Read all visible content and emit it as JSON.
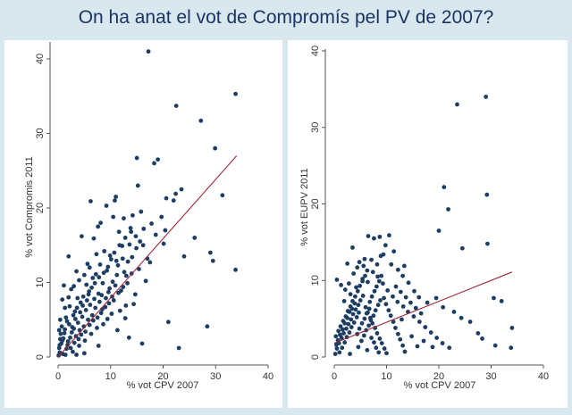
{
  "title": "On ha anat el vot de Compromís pel PV de 2007?",
  "chart_data": [
    {
      "type": "scatter",
      "xlabel": "% vot CPV 2007",
      "ylabel": "% vot Compromis 2011",
      "xlim": [
        0,
        40
      ],
      "ylim": [
        0,
        40
      ],
      "xticks": [
        0,
        10,
        20,
        30,
        40
      ],
      "yticks": [
        0,
        10,
        20,
        30,
        40
      ],
      "fit_line": {
        "x": [
          0,
          34
        ],
        "y": [
          0,
          27
        ]
      },
      "points": [
        [
          17.2,
          41
        ],
        [
          22.5,
          33.7
        ],
        [
          27.2,
          31.7
        ],
        [
          33.8,
          35.3
        ],
        [
          29.9,
          28
        ],
        [
          15,
          26.7
        ],
        [
          19,
          26.5
        ],
        [
          18.3,
          26
        ],
        [
          23.5,
          22.5
        ],
        [
          22.4,
          21.9
        ],
        [
          31.3,
          21.7
        ],
        [
          20.6,
          21.3
        ],
        [
          22,
          21
        ],
        [
          11,
          21.5
        ],
        [
          10.8,
          21
        ],
        [
          15.2,
          23
        ],
        [
          26,
          16
        ],
        [
          24,
          13.5
        ],
        [
          29,
          14
        ],
        [
          29.5,
          12.9
        ],
        [
          33.8,
          11.7
        ],
        [
          17,
          13.2
        ],
        [
          17.5,
          12.7
        ],
        [
          20.1,
          15.2
        ],
        [
          16.2,
          15
        ],
        [
          21,
          4.7
        ],
        [
          28.4,
          4.1
        ],
        [
          23,
          1.2
        ],
        [
          13.5,
          2.6
        ],
        [
          12.8,
          5.2
        ],
        [
          14.7,
          8.4
        ],
        [
          6.2,
          20.9
        ],
        [
          4.5,
          16.2
        ],
        [
          2,
          13.5
        ],
        [
          9.2,
          20.3
        ],
        [
          7.6,
          17.5
        ],
        [
          12.5,
          18.6
        ],
        [
          14.2,
          19
        ],
        [
          11.6,
          16.8
        ],
        [
          8.1,
          18
        ],
        [
          13.8,
          17.3
        ],
        [
          12.2,
          14.9
        ],
        [
          15.8,
          19.5
        ],
        [
          10.5,
          18.8
        ],
        [
          6.8,
          15.9
        ],
        [
          3.5,
          11.5
        ],
        [
          1.1,
          9.6
        ],
        [
          0.8,
          7.7
        ],
        [
          2.5,
          9.1
        ],
        [
          5.6,
          12.5
        ],
        [
          8.8,
          14.2
        ],
        [
          9.9,
          13.6
        ],
        [
          11.4,
          12.3
        ],
        [
          13,
          10.9
        ],
        [
          15.4,
          11.8
        ],
        [
          16.7,
          10.2
        ],
        [
          12,
          8.9
        ],
        [
          10.6,
          7.6
        ],
        [
          8.5,
          9.9
        ],
        [
          7.2,
          11.1
        ],
        [
          5.9,
          8.8
        ],
        [
          4.3,
          7.3
        ],
        [
          3.2,
          6.1
        ],
        [
          2.1,
          4.4
        ],
        [
          1.2,
          3.2
        ],
        [
          0.6,
          1.8
        ],
        [
          0.3,
          0.6
        ],
        [
          0.2,
          1.2
        ],
        [
          0.4,
          2.4
        ],
        [
          0.9,
          0.4
        ],
        [
          1.6,
          1.1
        ],
        [
          2.3,
          2.6
        ],
        [
          3,
          3.8
        ],
        [
          3.8,
          4.6
        ],
        [
          4.6,
          5.4
        ],
        [
          5.3,
          6.3
        ],
        [
          6.1,
          7
        ],
        [
          6.9,
          7.8
        ],
        [
          7.7,
          8.5
        ],
        [
          8.4,
          6.4
        ],
        [
          9.1,
          7.9
        ],
        [
          9.8,
          9.2
        ],
        [
          10.4,
          10.1
        ],
        [
          11.2,
          11
        ],
        [
          12.6,
          11.4
        ],
        [
          13.3,
          12.8
        ],
        [
          14.1,
          13.4
        ],
        [
          14.9,
          14.6
        ],
        [
          15.6,
          15.5
        ],
        [
          16.3,
          17.2
        ],
        [
          17.8,
          17.9
        ],
        [
          18.6,
          16.4
        ],
        [
          19.7,
          18.8
        ],
        [
          20.4,
          17
        ],
        [
          1.4,
          0.3
        ],
        [
          2.8,
          0.7
        ],
        [
          4,
          1.5
        ],
        [
          5.1,
          2.2
        ],
        [
          6.3,
          3.1
        ],
        [
          7.4,
          3.9
        ],
        [
          8.6,
          4.4
        ],
        [
          9.4,
          5.1
        ],
        [
          10.2,
          5.8
        ],
        [
          11.8,
          6.2
        ],
        [
          12.9,
          6.9
        ],
        [
          14.4,
          7.1
        ],
        [
          1.9,
          2.1
        ],
        [
          2.6,
          3.3
        ],
        [
          3.4,
          2.8
        ],
        [
          4.1,
          3.6
        ],
        [
          4.9,
          4.1
        ],
        [
          5.7,
          5
        ],
        [
          6.5,
          5.6
        ],
        [
          7.1,
          6.6
        ],
        [
          7.9,
          7.4
        ],
        [
          8.3,
          8.3
        ],
        [
          9.6,
          8.7
        ],
        [
          10.9,
          9.6
        ],
        [
          11.1,
          12.9
        ],
        [
          12.3,
          13.2
        ],
        [
          13.6,
          15.1
        ],
        [
          14.8,
          16.2
        ],
        [
          9.3,
          11.6
        ],
        [
          8,
          12.4
        ],
        [
          6.6,
          10.6
        ],
        [
          5.4,
          9.7
        ],
        [
          4.8,
          8.1
        ],
        [
          3.7,
          7.9
        ],
        [
          2.9,
          5.6
        ],
        [
          2.2,
          6.8
        ],
        [
          1.5,
          5.3
        ],
        [
          0.7,
          4.1
        ],
        [
          0.5,
          3.1
        ],
        [
          1,
          2.5
        ],
        [
          1.8,
          1.6
        ],
        [
          2.4,
          1.2
        ],
        [
          3.1,
          1.9
        ],
        [
          3.9,
          2.4
        ],
        [
          4.4,
          3
        ],
        [
          5.2,
          3.4
        ],
        [
          6,
          4.3
        ],
        [
          6.7,
          4.9
        ],
        [
          7.5,
          5.3
        ],
        [
          8.2,
          5.9
        ],
        [
          9,
          6.7
        ],
        [
          9.7,
          7.2
        ],
        [
          10.3,
          8.1
        ],
        [
          11.5,
          8.6
        ],
        [
          12.4,
          9.4
        ],
        [
          13.2,
          9.9
        ],
        [
          14,
          11.2
        ],
        [
          0.1,
          0.2
        ],
        [
          0.3,
          1.6
        ],
        [
          0.8,
          2.2
        ],
        [
          1.3,
          3.7
        ],
        [
          1.7,
          4.8
        ],
        [
          2.7,
          4
        ],
        [
          3.3,
          5.1
        ],
        [
          3.6,
          6.6
        ],
        [
          4.2,
          6
        ],
        [
          4.7,
          6.9
        ],
        [
          5.5,
          7.6
        ],
        [
          5.8,
          8.4
        ],
        [
          6.4,
          9.3
        ],
        [
          7,
          9.9
        ],
        [
          7.8,
          10.7
        ],
        [
          8.7,
          11.3
        ],
        [
          9.5,
          12.1
        ],
        [
          10.1,
          13.1
        ],
        [
          10.7,
          14
        ],
        [
          11.7,
          15
        ],
        [
          12.8,
          16
        ],
        [
          13.9,
          16.8
        ],
        [
          7.3,
          13.8
        ],
        [
          6,
          12
        ],
        [
          5,
          11
        ],
        [
          4,
          10.3
        ],
        [
          3,
          9.5
        ],
        [
          2,
          8
        ],
        [
          1.3,
          6.6
        ],
        [
          0.4,
          5
        ],
        [
          0.2,
          3.6
        ],
        [
          16,
          1.8
        ],
        [
          11.3,
          3.6
        ],
        [
          7.7,
          1.5
        ],
        [
          5,
          0.5
        ],
        [
          3.5,
          0.3
        ]
      ]
    },
    {
      "type": "scatter",
      "xlabel": "% vot CPV 2007",
      "ylabel": "% vot EUPV 2011",
      "xlim": [
        0,
        40
      ],
      "ylim": [
        0,
        40
      ],
      "xticks": [
        0,
        10,
        20,
        30,
        40
      ],
      "yticks": [
        0,
        10,
        20,
        30,
        40
      ],
      "fit_line": {
        "x": [
          0,
          34
        ],
        "y": [
          1.8,
          11.1
        ]
      },
      "points": [
        [
          29,
          34
        ],
        [
          23.5,
          33
        ],
        [
          21,
          22.2
        ],
        [
          21.8,
          19.3
        ],
        [
          29.2,
          21.2
        ],
        [
          20,
          16.5
        ],
        [
          24.5,
          14.2
        ],
        [
          29.3,
          14.8
        ],
        [
          30.5,
          7.7
        ],
        [
          32,
          7.3
        ],
        [
          34,
          3.8
        ],
        [
          33.8,
          1.2
        ],
        [
          30.8,
          1.5
        ],
        [
          28.3,
          2.4
        ],
        [
          27.5,
          3.1
        ],
        [
          26,
          4.6
        ],
        [
          24.3,
          5.1
        ],
        [
          22.9,
          5.9
        ],
        [
          20.8,
          6.5
        ],
        [
          19.5,
          7.7
        ],
        [
          17.8,
          7.1
        ],
        [
          16.2,
          7.8
        ],
        [
          15.3,
          8.6
        ],
        [
          14.2,
          9.7
        ],
        [
          13.1,
          10.6
        ],
        [
          12.2,
          11.4
        ],
        [
          10.9,
          12.1
        ],
        [
          9.8,
          14.6
        ],
        [
          8.7,
          15.7
        ],
        [
          7.6,
          15.5
        ],
        [
          10.5,
          15.9
        ],
        [
          5.8,
          12.8
        ],
        [
          4.8,
          12.4
        ],
        [
          3.5,
          14.3
        ],
        [
          2.5,
          12.2
        ],
        [
          6.5,
          15.8
        ],
        [
          8.9,
          13.2
        ],
        [
          11.4,
          13.8
        ],
        [
          13.4,
          11.9
        ],
        [
          0.5,
          10.1
        ],
        [
          1.3,
          9.4
        ],
        [
          2.1,
          8.8
        ],
        [
          3.1,
          8.2
        ],
        [
          4.2,
          9.1
        ],
        [
          5.4,
          10.2
        ],
        [
          6.4,
          9.8
        ],
        [
          7.4,
          11.1
        ],
        [
          8.3,
          10.5
        ],
        [
          9.3,
          9.6
        ],
        [
          10.2,
          8.7
        ],
        [
          11.2,
          7.9
        ],
        [
          12.1,
          7.2
        ],
        [
          13.2,
          6.6
        ],
        [
          14.1,
          5.9
        ],
        [
          15.2,
          5.3
        ],
        [
          16.3,
          4.6
        ],
        [
          17.4,
          3.9
        ],
        [
          18.5,
          3.2
        ],
        [
          19.6,
          2.5
        ],
        [
          20.7,
          1.8
        ],
        [
          22,
          1.2
        ],
        [
          0.2,
          0.4
        ],
        [
          0.5,
          1.1
        ],
        [
          0.9,
          1.8
        ],
        [
          1.4,
          2.5
        ],
        [
          1.8,
          3.1
        ],
        [
          2.3,
          3.7
        ],
        [
          2.7,
          4.3
        ],
        [
          3.2,
          4.9
        ],
        [
          3.6,
          5.6
        ],
        [
          4.1,
          6.2
        ],
        [
          4.6,
          6.8
        ],
        [
          5,
          7.4
        ],
        [
          5.5,
          8
        ],
        [
          6,
          6.5
        ],
        [
          6.4,
          5.8
        ],
        [
          6.9,
          5.1
        ],
        [
          7.3,
          4.4
        ],
        [
          7.8,
          3.8
        ],
        [
          8.2,
          3.1
        ],
        [
          8.7,
          2.4
        ],
        [
          9.1,
          1.8
        ],
        [
          9.6,
          1.1
        ],
        [
          10,
          0.5
        ],
        [
          0.3,
          2.7
        ],
        [
          0.8,
          3.4
        ],
        [
          1.2,
          4
        ],
        [
          1.7,
          4.7
        ],
        [
          2.2,
          5.3
        ],
        [
          2.6,
          6
        ],
        [
          3.1,
          6.6
        ],
        [
          3.5,
          7.3
        ],
        [
          4,
          7.9
        ],
        [
          4.5,
          8.6
        ],
        [
          4.9,
          9.3
        ],
        [
          5.4,
          9.9
        ],
        [
          5.9,
          10.6
        ],
        [
          6.3,
          11.3
        ],
        [
          6.8,
          7.2
        ],
        [
          7.2,
          7.9
        ],
        [
          7.7,
          8.6
        ],
        [
          8.1,
          9.2
        ],
        [
          8.6,
          9.9
        ],
        [
          9,
          10.6
        ],
        [
          9.5,
          7.7
        ],
        [
          9.9,
          6.9
        ],
        [
          10.4,
          6.1
        ],
        [
          10.8,
          5.4
        ],
        [
          11.3,
          4.6
        ],
        [
          11.7,
          3.8
        ],
        [
          12.2,
          3
        ],
        [
          12.6,
          2.3
        ],
        [
          13.1,
          1.5
        ],
        [
          13.5,
          0.7
        ],
        [
          1,
          0.6
        ],
        [
          1.5,
          1.2
        ],
        [
          2,
          1.9
        ],
        [
          2.4,
          2.6
        ],
        [
          2.9,
          3.2
        ],
        [
          3.3,
          3.9
        ],
        [
          3.8,
          4.5
        ],
        [
          4.3,
          5.2
        ],
        [
          4.7,
          5.8
        ],
        [
          5.2,
          2.1
        ],
        [
          5.7,
          2.8
        ],
        [
          6.1,
          3.5
        ],
        [
          6.6,
          4.1
        ],
        [
          7,
          4.8
        ],
        [
          7.5,
          5.4
        ],
        [
          7.9,
          6.1
        ],
        [
          8.4,
          6.8
        ],
        [
          8.8,
          7.4
        ],
        [
          0.4,
          1.6
        ],
        [
          0.7,
          2.2
        ],
        [
          1.1,
          2.9
        ],
        [
          1.6,
          3.6
        ],
        [
          2,
          4.4
        ],
        [
          2.5,
          5.1
        ],
        [
          2.9,
          5.9
        ],
        [
          3.4,
          6.3
        ],
        [
          3.9,
          7
        ],
        [
          4.4,
          3
        ],
        [
          4.8,
          3.7
        ],
        [
          5.3,
          4.4
        ],
        [
          5.8,
          5
        ],
        [
          6.2,
          5.7
        ],
        [
          6.7,
          6.3
        ],
        [
          7.1,
          2.5
        ],
        [
          7.6,
          1.9
        ],
        [
          8,
          1.2
        ],
        [
          8.5,
          0.6
        ],
        [
          11.8,
          9.2
        ],
        [
          12.7,
          8.5
        ],
        [
          13.7,
          7.8
        ],
        [
          14.6,
          7.1
        ],
        [
          15.6,
          6.4
        ],
        [
          16.6,
          5.7
        ],
        [
          17.1,
          2.1
        ],
        [
          18.8,
          1.3
        ],
        [
          14.8,
          2.7
        ],
        [
          15.9,
          1.4
        ],
        [
          12.9,
          4.9
        ],
        [
          3,
          0.4
        ],
        [
          4.6,
          1.3
        ],
        [
          6.3,
          0.9
        ],
        [
          1.9,
          7.3
        ],
        [
          2.8,
          9.6
        ],
        [
          3.7,
          10.9
        ],
        [
          4.4,
          11.7
        ],
        [
          5.6,
          11.9
        ],
        [
          7.1,
          12.7
        ],
        [
          9.4,
          13.4
        ],
        [
          8.2,
          12.1
        ]
      ]
    }
  ]
}
